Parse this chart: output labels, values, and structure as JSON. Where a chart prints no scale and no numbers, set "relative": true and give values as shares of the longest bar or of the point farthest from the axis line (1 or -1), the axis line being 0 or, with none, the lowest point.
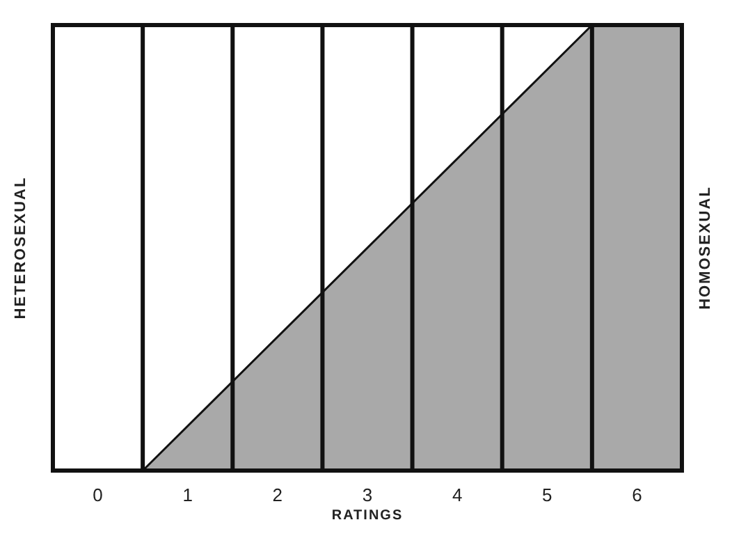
{
  "chart_data": {
    "type": "area",
    "relative": true,
    "xlabel": "RATINGS",
    "ylabel": "HETEROSEXUAL",
    "y2label": "HOMOSEXUAL",
    "x": [
      -0.5,
      0.5,
      5.5,
      6.5
    ],
    "xlim": [
      -0.5,
      6.5
    ],
    "xticks": [
      0,
      1,
      2,
      3,
      4,
      5,
      6
    ],
    "series": [
      {
        "color": "#a9a9a9",
        "values": [
          0,
          0,
          1,
          1
        ]
      }
    ],
    "ref_lines": [
      {
        "axis": "x",
        "value": 0.5
      },
      {
        "axis": "x",
        "value": 1.5
      },
      {
        "axis": "x",
        "value": 2.5
      },
      {
        "axis": "x",
        "value": 3.5
      },
      {
        "axis": "x",
        "value": 4.5
      },
      {
        "axis": "x",
        "value": 5.5
      }
    ]
  }
}
